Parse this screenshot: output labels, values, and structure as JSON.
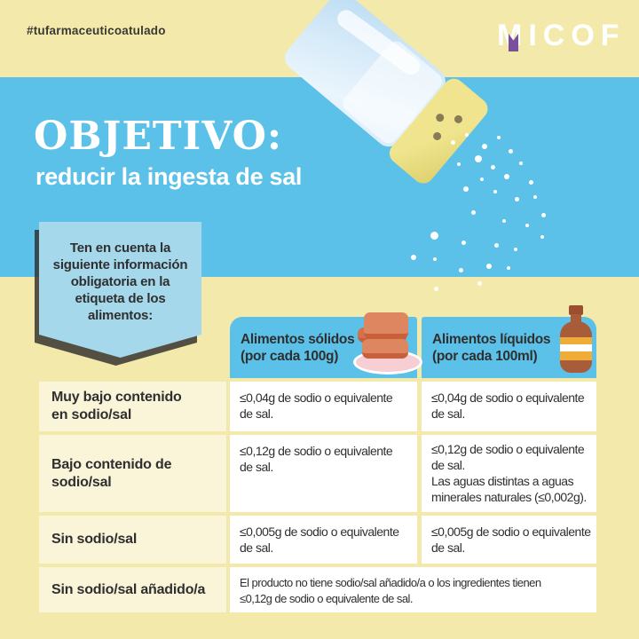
{
  "page": {
    "hashtag": "#tufarmaceuticoatulado",
    "brand": "MICOF"
  },
  "banner": {
    "title": "OBJETIVO:",
    "subtitle": "reducir la ingesta de sal"
  },
  "callout": {
    "text": "Ten en cuenta la\nsiguiente información\nobligatoria en la\netiqueta de los\nalimentos:"
  },
  "table": {
    "columns": [
      {
        "label": "Alimentos sólidos\n(por cada 100g)",
        "icon": "bread-on-plate-icon"
      },
      {
        "label": "Alimentos líquidos\n(por cada 100ml)",
        "icon": "sauce-bottle-icon"
      }
    ],
    "rows": [
      {
        "label": "Muy bajo contenido\nen sodio/sal",
        "solid": "≤0,04g de sodio o equivalente\nde sal.",
        "liquid": "≤0,04g de sodio o equivalente\nde sal."
      },
      {
        "label": "Bajo contenido de\nsodio/sal",
        "solid": "≤0,12g de sodio o equivalente\nde sal.",
        "liquid": "≤0,12g de sodio o equivalente\nde sal.\nLas aguas distintas a aguas\nminerales naturales (≤0,002g)."
      },
      {
        "label": "Sin sodio/sal",
        "solid": "≤0,005g de sodio o equivalente\nde sal.",
        "liquid": "≤0,005g de sodio o equivalente\nde sal."
      },
      {
        "label": "Sin sodio/sal añadido/a",
        "combined": "El producto no tiene sodio/sal añadido/a o los ingredientes tienen\n≤0,12g de sodio o equivalente de sal."
      }
    ]
  },
  "illustrations": {
    "salt_shaker": "salt-shaker-icon",
    "salt_grains": "salt-grains"
  },
  "colors": {
    "yellow_bg": "#f2e9ab",
    "blue": "#5cc1e8",
    "callout_blue": "#a6d8ec",
    "label_cream": "#faf4d8",
    "cell_white": "#ffffff",
    "text_dark": "#2f2f2f",
    "brand_purple": "#7b4fa0"
  }
}
